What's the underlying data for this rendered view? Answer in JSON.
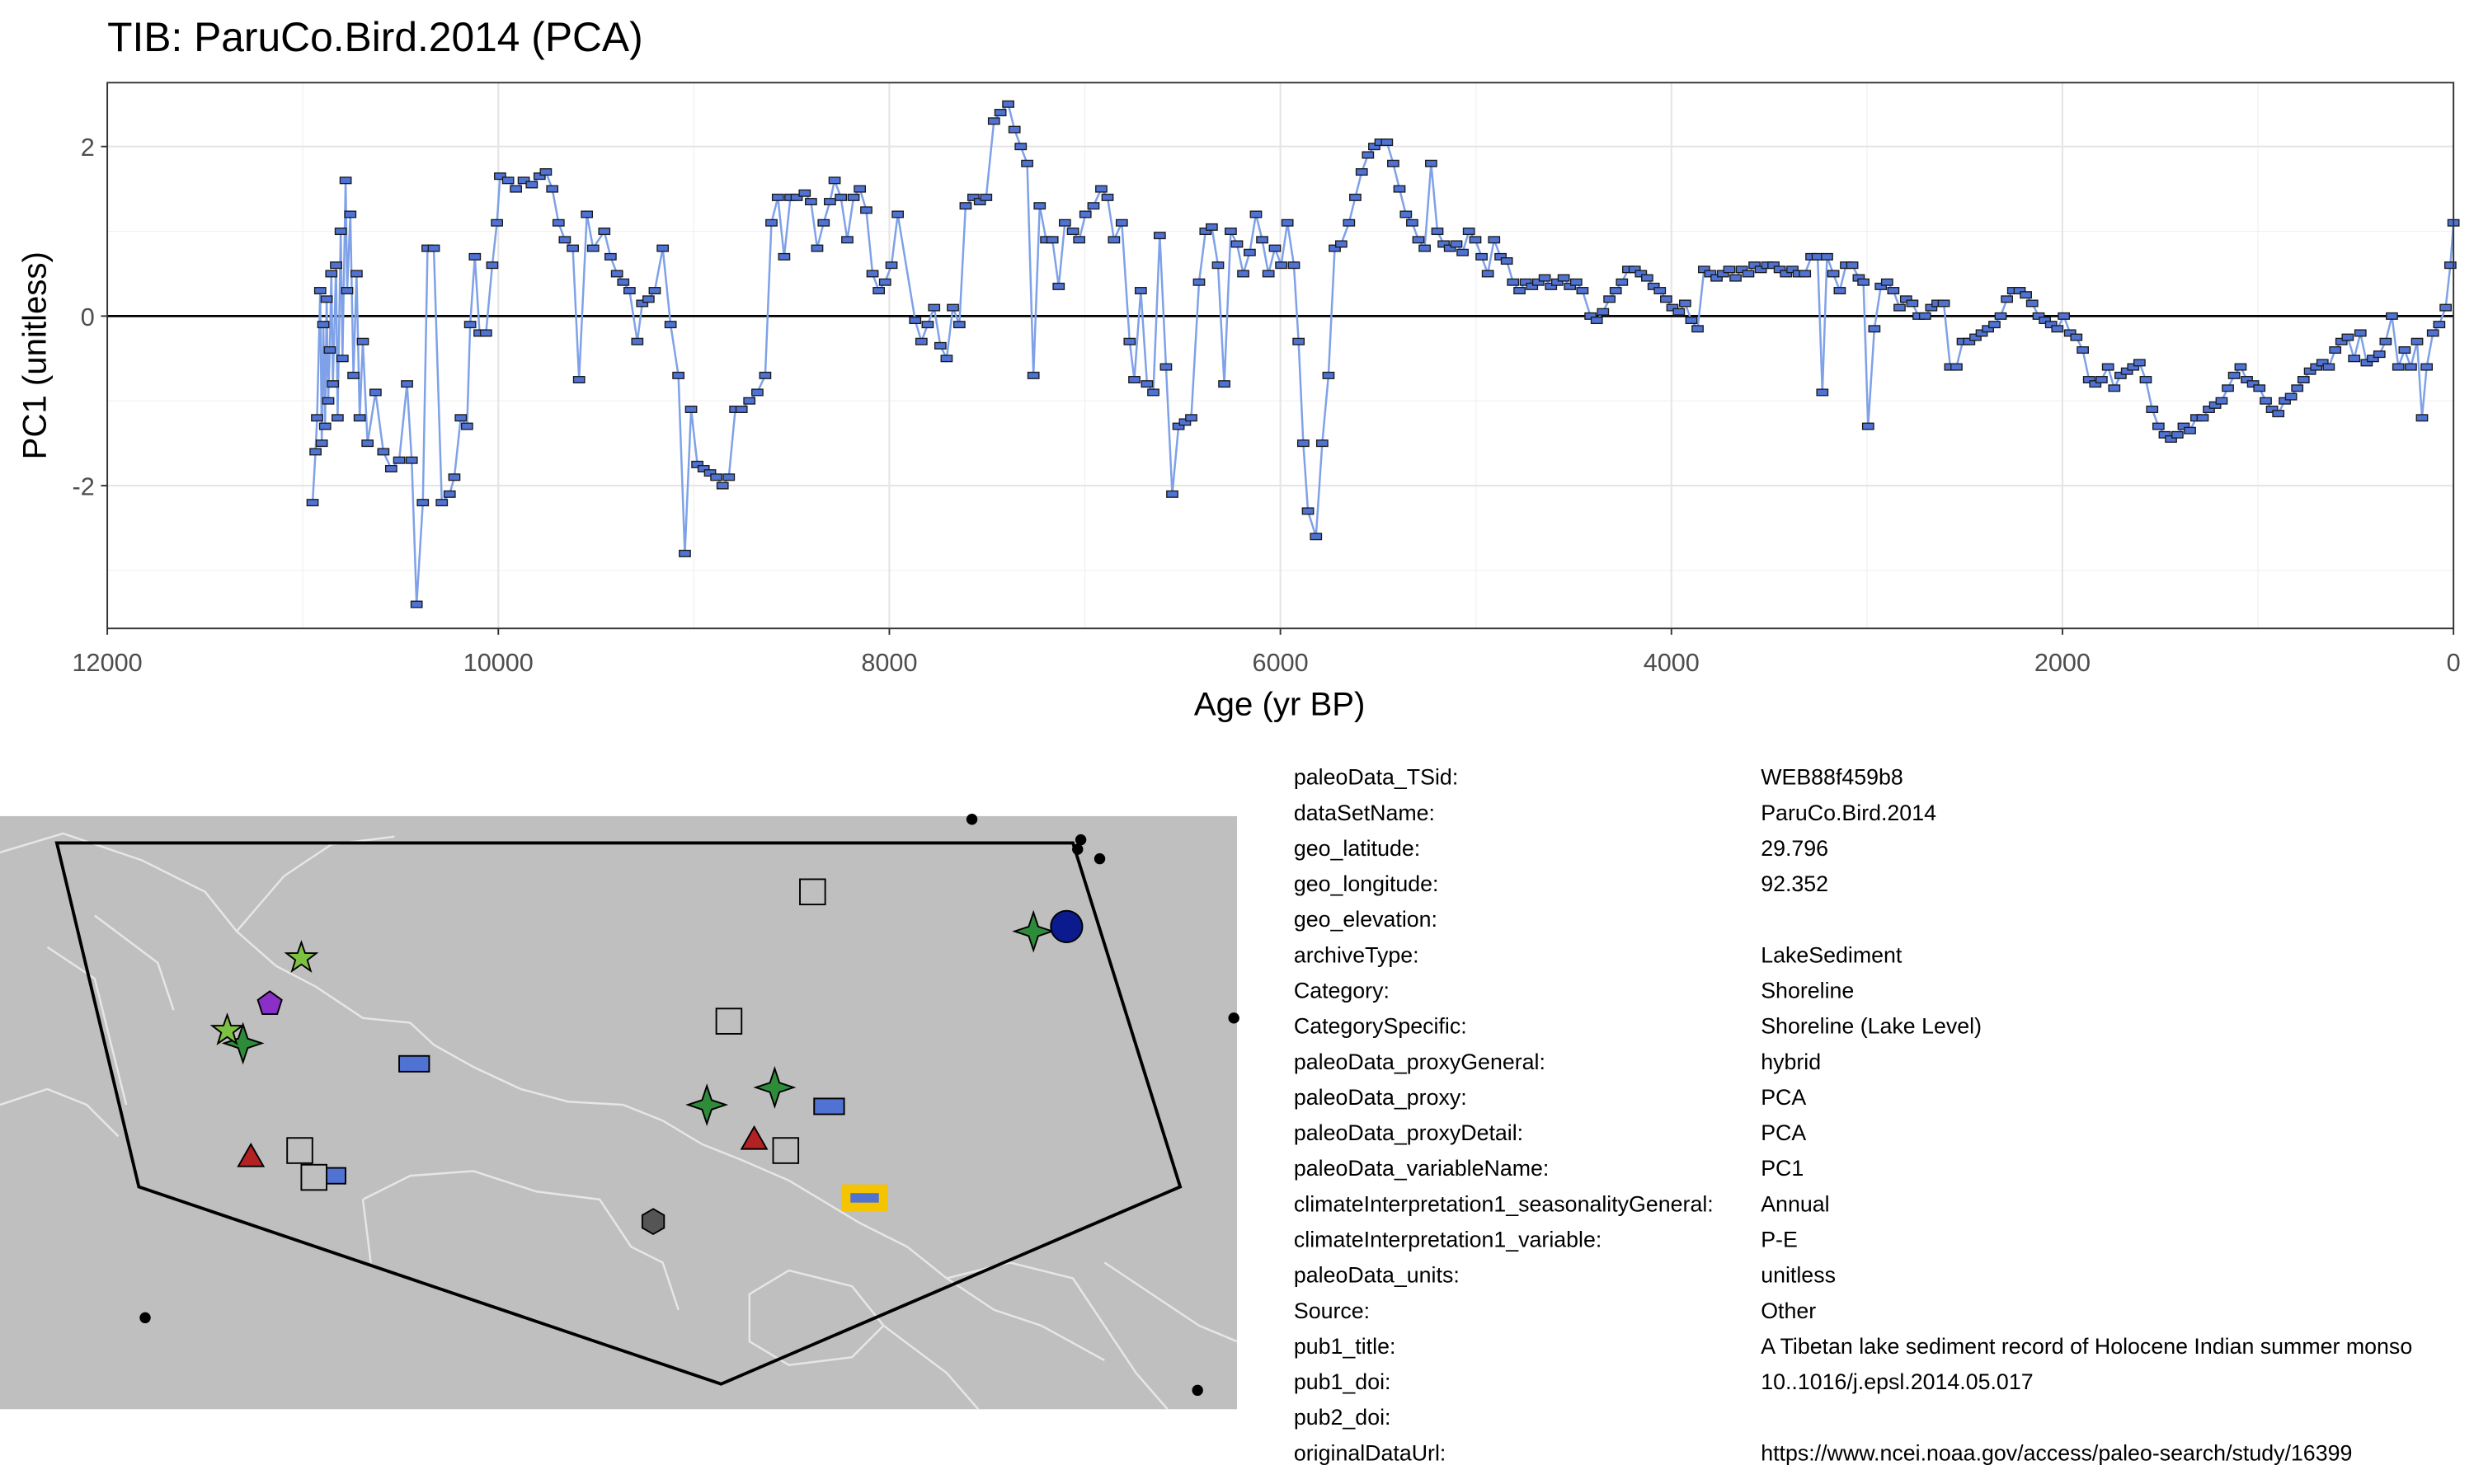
{
  "chart_data": {
    "type": "line",
    "title": "TIB: ParuCo.Bird.2014 (PCA)",
    "x_label": "Age (yr BP)",
    "y_label": "PC1 (unitless)",
    "xlim": [
      12000,
      0
    ],
    "ylim": [
      -3.684,
      2.753
    ],
    "xticks": [
      12000,
      10000,
      8000,
      6000,
      4000,
      2000,
      0
    ],
    "yticks": [
      -2,
      0,
      2
    ],
    "grid": true,
    "hline": 0,
    "color": "#7ea1e8",
    "marker_color": "#4f72d3",
    "x": [
      10950,
      10935,
      10927,
      10911,
      10903,
      10895,
      10886,
      10878,
      10870,
      10862,
      10854,
      10846,
      10830,
      10822,
      10806,
      10797,
      10781,
      10773,
      10757,
      10741,
      10725,
      10709,
      10693,
      10669,
      10628,
      10588,
      10548,
      10507,
      10467,
      10443,
      10418,
      10386,
      10362,
      10330,
      10289,
      10249,
      10225,
      10192,
      10160,
      10144,
      10120,
      10096,
      10063,
      10031,
      10007,
      9991,
      9950,
      9910,
      9870,
      9829,
      9789,
      9757,
      9724,
      9692,
      9660,
      9619,
      9587,
      9547,
      9515,
      9458,
      9426,
      9393,
      9361,
      9329,
      9289,
      9264,
      9232,
      9200,
      9159,
      9119,
      9079,
      9046,
      9014,
      8982,
      8950,
      8917,
      8885,
      8853,
      8821,
      8788,
      8756,
      8716,
      8675,
      8635,
      8603,
      8570,
      8538,
      8506,
      8474,
      8433,
      8401,
      8369,
      8336,
      8304,
      8280,
      8248,
      8215,
      8183,
      8151,
      8118,
      8086,
      8054,
      8022,
      7989,
      7957,
      7868,
      7836,
      7804,
      7771,
      7739,
      7707,
      7675,
      7642,
      7610,
      7570,
      7537,
      7505,
      7465,
      7432,
      7392,
      7360,
      7328,
      7295,
      7263,
      7231,
      7198,
      7166,
      7134,
      7102,
      7061,
      7029,
      6997,
      6956,
      6916,
      6884,
      6851,
      6811,
      6771,
      6747,
      6714,
      6682,
      6650,
      6617,
      6585,
      6553,
      6521,
      6488,
      6456,
      6416,
      6383,
      6351,
      6319,
      6287,
      6254,
      6222,
      6190,
      6157,
      6125,
      6093,
      6061,
      6028,
      5996,
      5964,
      5931,
      5907,
      5883,
      5859,
      5818,
      5786,
      5754,
      5722,
      5689,
      5649,
      5617,
      5584,
      5552,
      5520,
      5488,
      5455,
      5423,
      5391,
      5358,
      5326,
      5294,
      5262,
      5229,
      5197,
      5165,
      5133,
      5100,
      5068,
      5036,
      5003,
      4971,
      4939,
      4907,
      4874,
      4842,
      4810,
      4777,
      4745,
      4713,
      4681,
      4648,
      4616,
      4584,
      4551,
      4519,
      4487,
      4455,
      4414,
      4382,
      4350,
      4317,
      4285,
      4253,
      4221,
      4188,
      4156,
      4124,
      4091,
      4059,
      4027,
      3995,
      3962,
      3930,
      3898,
      3866,
      3833,
      3801,
      3769,
      3736,
      3704,
      3672,
      3640,
      3607,
      3575,
      3543,
      3510,
      3478,
      3446,
      3414,
      3381,
      3349,
      3317,
      3284,
      3252,
      3228,
      3204,
      3172,
      3139,
      3107,
      3075,
      3042,
      3018,
      2994,
      2962,
      2929,
      2897,
      2865,
      2833,
      2800,
      2768,
      2736,
      2703,
      2671,
      2639,
      2607,
      2574,
      2542,
      2510,
      2477,
      2445,
      2413,
      2381,
      2348,
      2316,
      2284,
      2252,
      2219,
      2187,
      2155,
      2122,
      2090,
      2058,
      2026,
      1993,
      1961,
      1929,
      1896,
      1864,
      1832,
      1800,
      1767,
      1735,
      1703,
      1670,
      1638,
      1606,
      1574,
      1541,
      1509,
      1477,
      1445,
      1412,
      1380,
      1348,
      1315,
      1283,
      1251,
      1219,
      1186,
      1154,
      1122,
      1089,
      1057,
      1025,
      993,
      960,
      928,
      896,
      863,
      831,
      799,
      767,
      734,
      702,
      670,
      638,
      605,
      573,
      541,
      508,
      476,
      444,
      412,
      379,
      347,
      315,
      282,
      250,
      218,
      186,
      161,
      137,
      105,
      73,
      40,
      16,
      0
    ],
    "values": [
      -2.2,
      -1.6,
      -1.2,
      0.3,
      -1.5,
      -0.1,
      -1.3,
      0.2,
      -1.0,
      -0.4,
      0.5,
      -0.8,
      0.6,
      -1.2,
      1.0,
      -0.5,
      1.6,
      0.3,
      1.2,
      -0.7,
      0.5,
      -1.2,
      -0.3,
      -1.5,
      -0.9,
      -1.6,
      -1.8,
      -1.7,
      -0.8,
      -1.7,
      -3.4,
      -2.2,
      0.8,
      0.8,
      -2.2,
      -2.1,
      -1.9,
      -1.2,
      -1.3,
      -0.1,
      0.7,
      -0.2,
      -0.2,
      0.6,
      1.1,
      1.65,
      1.6,
      1.5,
      1.6,
      1.55,
      1.65,
      1.7,
      1.5,
      1.1,
      0.9,
      0.8,
      -0.75,
      1.2,
      0.8,
      1.0,
      0.7,
      0.5,
      0.4,
      0.3,
      -0.3,
      0.15,
      0.2,
      0.3,
      0.8,
      -0.1,
      -0.7,
      -2.8,
      -1.1,
      -1.75,
      -1.8,
      -1.85,
      -1.9,
      -2.0,
      -1.9,
      -1.1,
      -1.1,
      -1.0,
      -0.9,
      -0.7,
      1.1,
      1.4,
      0.7,
      1.4,
      1.4,
      1.45,
      1.35,
      0.8,
      1.1,
      1.35,
      1.6,
      1.4,
      0.9,
      1.4,
      1.5,
      1.25,
      0.5,
      0.3,
      0.4,
      0.6,
      1.2,
      -0.05,
      -0.3,
      -0.1,
      0.1,
      -0.35,
      -0.5,
      0.1,
      -0.1,
      1.3,
      1.4,
      1.35,
      1.4,
      2.3,
      2.4,
      2.5,
      2.2,
      2.0,
      1.8,
      -0.7,
      1.3,
      0.9,
      0.9,
      0.35,
      1.1,
      1.0,
      0.9,
      1.2,
      1.3,
      1.5,
      1.4,
      0.9,
      1.1,
      -0.3,
      -0.75,
      0.3,
      -0.8,
      -0.9,
      0.95,
      -0.6,
      -2.1,
      -1.3,
      -1.25,
      -1.2,
      0.4,
      1.0,
      1.05,
      0.6,
      -0.8,
      1.0,
      0.85,
      0.5,
      0.75,
      1.2,
      0.9,
      0.5,
      0.8,
      0.6,
      1.1,
      0.6,
      -0.3,
      -1.5,
      -2.3,
      -2.6,
      -1.5,
      -0.7,
      0.8,
      0.85,
      1.1,
      1.4,
      1.7,
      1.9,
      2.0,
      2.05,
      2.05,
      1.8,
      1.5,
      1.2,
      1.1,
      0.9,
      0.8,
      1.8,
      1.0,
      0.85,
      0.8,
      0.85,
      0.75,
      1.0,
      0.9,
      0.7,
      0.5,
      0.9,
      0.7,
      0.65,
      0.4,
      0.3,
      0.4,
      0.35,
      0.4,
      0.45,
      0.35,
      0.4,
      0.45,
      0.35,
      0.4,
      0.3,
      0.0,
      -0.05,
      0.05,
      0.2,
      0.3,
      0.4,
      0.55,
      0.55,
      0.5,
      0.45,
      0.35,
      0.3,
      0.2,
      0.1,
      0.05,
      0.15,
      -0.05,
      -0.15,
      0.55,
      0.5,
      0.45,
      0.5,
      0.55,
      0.45,
      0.55,
      0.5,
      0.6,
      0.55,
      0.6,
      0.6,
      0.55,
      0.5,
      0.55,
      0.5,
      0.5,
      0.7,
      0.7,
      -0.9,
      0.7,
      0.5,
      0.3,
      0.6,
      0.6,
      0.45,
      0.4,
      -1.3,
      -0.15,
      0.35,
      0.4,
      0.3,
      0.1,
      0.2,
      0.15,
      0.0,
      0.0,
      0.1,
      0.15,
      0.15,
      -0.6,
      -0.6,
      -0.3,
      -0.3,
      -0.25,
      -0.2,
      -0.15,
      -0.1,
      0.0,
      0.2,
      0.3,
      0.3,
      0.25,
      0.15,
      0.0,
      -0.05,
      -0.1,
      -0.15,
      0.0,
      -0.2,
      -0.25,
      -0.4,
      -0.75,
      -0.8,
      -0.75,
      -0.6,
      -0.85,
      -0.7,
      -0.65,
      -0.6,
      -0.55,
      -0.75,
      -1.1,
      -1.3,
      -1.4,
      -1.45,
      -1.4,
      -1.3,
      -1.35,
      -1.2,
      -1.2,
      -1.1,
      -1.05,
      -1.0,
      -0.85,
      -0.7,
      -0.6,
      -0.75,
      -0.8,
      -0.85,
      -1.0,
      -1.1,
      -1.15,
      -1.0,
      -0.95,
      -0.85,
      -0.75,
      -0.65,
      -0.6,
      -0.55,
      -0.6,
      -0.4,
      -0.3,
      -0.25,
      -0.5,
      -0.2,
      -0.55,
      -0.5,
      -0.45,
      -0.3,
      0.0,
      -0.6,
      -0.4,
      -0.6,
      -0.3,
      -1.2,
      -0.6,
      -0.2,
      -0.1,
      0.1,
      0.6,
      1.1
    ]
  },
  "metadata": {
    "rows": [
      [
        "paleoData_TSid:",
        "WEB88f459b8"
      ],
      [
        "dataSetName:",
        "ParuCo.Bird.2014"
      ],
      [
        "geo_latitude:",
        "29.796"
      ],
      [
        "geo_longitude:",
        "92.352"
      ],
      [
        "geo_elevation:"
      ],
      [
        "archiveType:",
        "LakeSediment"
      ],
      [
        "Category:",
        "Shoreline"
      ],
      [
        "CategorySpecific:",
        "Shoreline (Lake Level)"
      ],
      [
        "paleoData_proxyGeneral:",
        "hybrid"
      ],
      [
        "paleoData_proxy:",
        "PCA"
      ],
      [
        "paleoData_proxyDetail:",
        "PCA"
      ],
      [
        "paleoData_variableName:",
        "PC1"
      ],
      [
        "climateInterpretation1_seasonalityGeneral:",
        "Annual"
      ],
      [
        "climateInterpretation1_variable:",
        "P-E"
      ],
      [
        "paleoData_units:",
        "unitless"
      ],
      [
        "Source:",
        "Other"
      ],
      [
        "pub1_title:",
        "A Tibetan lake sediment record of Holocene Indian summer monso"
      ],
      [
        "pub1_doi:",
        "10..1016/j.epsl.2014.05.017"
      ],
      [
        "pub2_doi:"
      ],
      [
        "originalDataUrl:",
        "https://www.ncei.noaa.gov/access/paleo-search/study/16399"
      ]
    ]
  }
}
